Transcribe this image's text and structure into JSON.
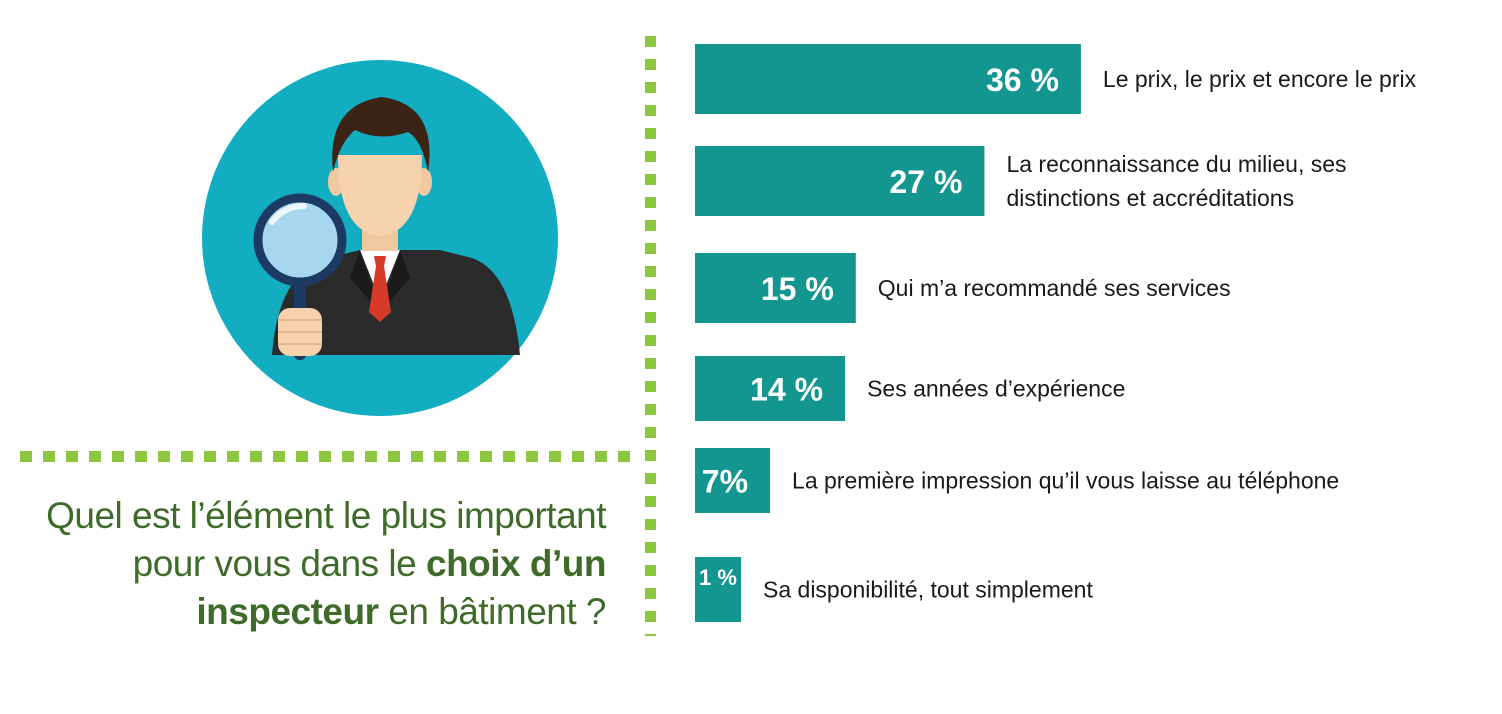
{
  "question": {
    "line1": "Quel est l’élément le plus important",
    "line2_start": "pour vous dans le ",
    "line2_bold": "choix d’un",
    "line3_bold": "inspecteur",
    "line3_end": " en bâtiment ?"
  },
  "colors": {
    "bar": "#12968f",
    "accent_green": "#8dc63f",
    "question_text": "#3f6b2a",
    "circle": "#13adc1"
  },
  "illustration_icon": "inspector-with-magnifying-glass-icon",
  "chart_data": {
    "type": "bar",
    "orientation": "horizontal",
    "bars": [
      {
        "value_label": "36 %",
        "value": 36,
        "label_lines": [
          "Le prix, le prix et encore le prix"
        ]
      },
      {
        "value_label": "27 %",
        "value": 27,
        "label_lines": [
          "La reconnaissance du milieu, ses",
          "distinctions et accréditations"
        ]
      },
      {
        "value_label": "15 %",
        "value": 15,
        "label_lines": [
          "Qui m’a recommandé ses services"
        ]
      },
      {
        "value_label": "14 %",
        "value": 14,
        "label_lines": [
          "Ses années d’expérience"
        ]
      },
      {
        "value_label": "7%",
        "value": 7,
        "label_lines": [
          "La première impression qu’il vous laisse au téléphone"
        ]
      },
      {
        "value_label": "1 %",
        "value": 1,
        "label_lines": [
          "Sa disponibilité,  tout simplement"
        ]
      }
    ]
  }
}
